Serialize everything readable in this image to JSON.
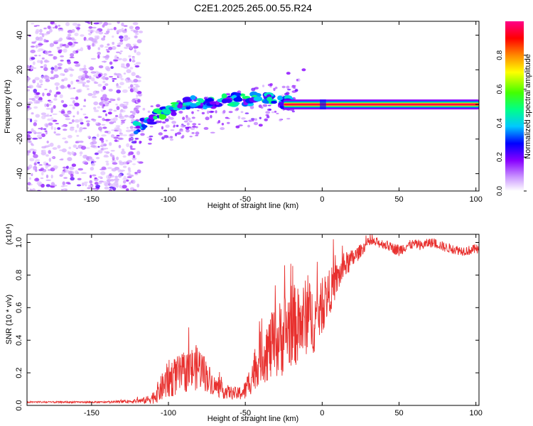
{
  "figure_title": "C2E1.2025.265.00.55.R24",
  "colors": {
    "line": "#e8302e",
    "axis": "#000000",
    "spectrogram_noise": "#8a2be2"
  },
  "chart_data": [
    {
      "type": "heatmap",
      "title": "C2E1.2025.265.00.55.R24",
      "xlabel": "Height of straight line (km)",
      "ylabel": "Frequency (Hz)",
      "xlim": [
        -192,
        102
      ],
      "ylim": [
        -50,
        48
      ],
      "xticks": [
        -150,
        -100,
        -50,
        0,
        50,
        100
      ],
      "xtick_labels": [
        "-150",
        "-100",
        "-50",
        "0",
        "50",
        "100"
      ],
      "yticks": [
        -40,
        -20,
        0,
        20,
        40
      ],
      "ytick_labels": [
        "-40",
        "-20",
        "0",
        "20",
        "40"
      ],
      "colorbar": {
        "label": "Normalized spectral amplitude",
        "range": [
          0,
          1
        ],
        "ticks": [
          0.0,
          0.2,
          0.4,
          0.6,
          0.8
        ],
        "tick_labels": [
          "0.0",
          "0.2",
          "0.4",
          "0.6",
          "0.8"
        ],
        "colormap": [
          "#ffffff",
          "#cc99ff",
          "#8800ff",
          "#0000ff",
          "#00c8ff",
          "#00ff88",
          "#44ff00",
          "#ffff00",
          "#ff8800",
          "#ff0000",
          "#ff0088"
        ]
      },
      "features": {
        "noise_region_x": [
          -192,
          -118
        ],
        "track_points": [
          {
            "x": -122,
            "y": -14,
            "amp": 0.55
          },
          {
            "x": -113,
            "y": -9,
            "amp": 0.5
          },
          {
            "x": -104,
            "y": -5,
            "amp": 0.55
          },
          {
            "x": -95,
            "y": -2,
            "amp": 0.5
          },
          {
            "x": -86,
            "y": 1,
            "amp": 0.55
          },
          {
            "x": -76,
            "y": 1,
            "amp": 0.45
          },
          {
            "x": -66,
            "y": 2,
            "amp": 0.5
          },
          {
            "x": -55,
            "y": 3,
            "amp": 0.45
          },
          {
            "x": -45,
            "y": 3,
            "amp": 0.55
          },
          {
            "x": -36,
            "y": 4,
            "amp": 0.5
          },
          {
            "x": -28,
            "y": 2,
            "amp": 0.4
          },
          {
            "x": -20,
            "y": 1,
            "amp": 0.5
          }
        ],
        "carrier": {
          "x_start": -25,
          "x_end": 102,
          "y": 0,
          "amp": 0.95
        }
      }
    },
    {
      "type": "line",
      "xlabel": "Height of straight line (km)",
      "ylabel": "SNR (10 * v/v)",
      "scale_note": "(x10⁴)",
      "xlim": [
        -192,
        102
      ],
      "ylim": [
        0,
        1.05
      ],
      "xticks": [
        -150,
        -100,
        -50,
        0,
        50,
        100
      ],
      "xtick_labels": [
        "-150",
        "-100",
        "-50",
        "0",
        "50",
        "100"
      ],
      "yticks": [
        0.0,
        0.2,
        0.4,
        0.6,
        0.8,
        1.0
      ],
      "ytick_labels": [
        "0.0",
        "0.2",
        "0.4",
        "0.6",
        "0.8",
        "1.0"
      ],
      "series": [
        {
          "name": "SNR",
          "x": [
            -192,
            -180,
            -160,
            -140,
            -125,
            -115,
            -110,
            -105,
            -100,
            -95,
            -90,
            -85,
            -80,
            -75,
            -70,
            -65,
            -60,
            -55,
            -50,
            -45,
            -40,
            -35,
            -30,
            -25,
            -20,
            -15,
            -10,
            -5,
            0,
            5,
            10,
            15,
            20,
            25,
            30,
            35,
            40,
            45,
            50,
            55,
            60,
            65,
            70,
            75,
            80,
            85,
            90,
            95,
            100,
            102
          ],
          "y": [
            0.02,
            0.02,
            0.02,
            0.02,
            0.025,
            0.03,
            0.05,
            0.1,
            0.16,
            0.18,
            0.2,
            0.22,
            0.24,
            0.18,
            0.12,
            0.09,
            0.08,
            0.07,
            0.09,
            0.2,
            0.3,
            0.34,
            0.38,
            0.44,
            0.5,
            0.48,
            0.55,
            0.52,
            0.6,
            0.7,
            0.78,
            0.86,
            0.9,
            0.95,
            1.0,
            1.0,
            0.99,
            0.97,
            0.95,
            0.98,
            0.99,
            0.98,
            1.0,
            0.99,
            0.97,
            0.96,
            0.95,
            0.95,
            0.96,
            0.95
          ],
          "noise": [
            0.005,
            0.005,
            0.005,
            0.005,
            0.01,
            0.02,
            0.04,
            0.08,
            0.12,
            0.12,
            0.12,
            0.14,
            0.14,
            0.1,
            0.06,
            0.05,
            0.04,
            0.04,
            0.06,
            0.12,
            0.16,
            0.2,
            0.22,
            0.26,
            0.26,
            0.24,
            0.24,
            0.2,
            0.16,
            0.14,
            0.1,
            0.08,
            0.06,
            0.04,
            0.03,
            0.03,
            0.03,
            0.03,
            0.04,
            0.03,
            0.03,
            0.03,
            0.03,
            0.03,
            0.03,
            0.03,
            0.03,
            0.03,
            0.03,
            0.03
          ]
        }
      ]
    }
  ]
}
